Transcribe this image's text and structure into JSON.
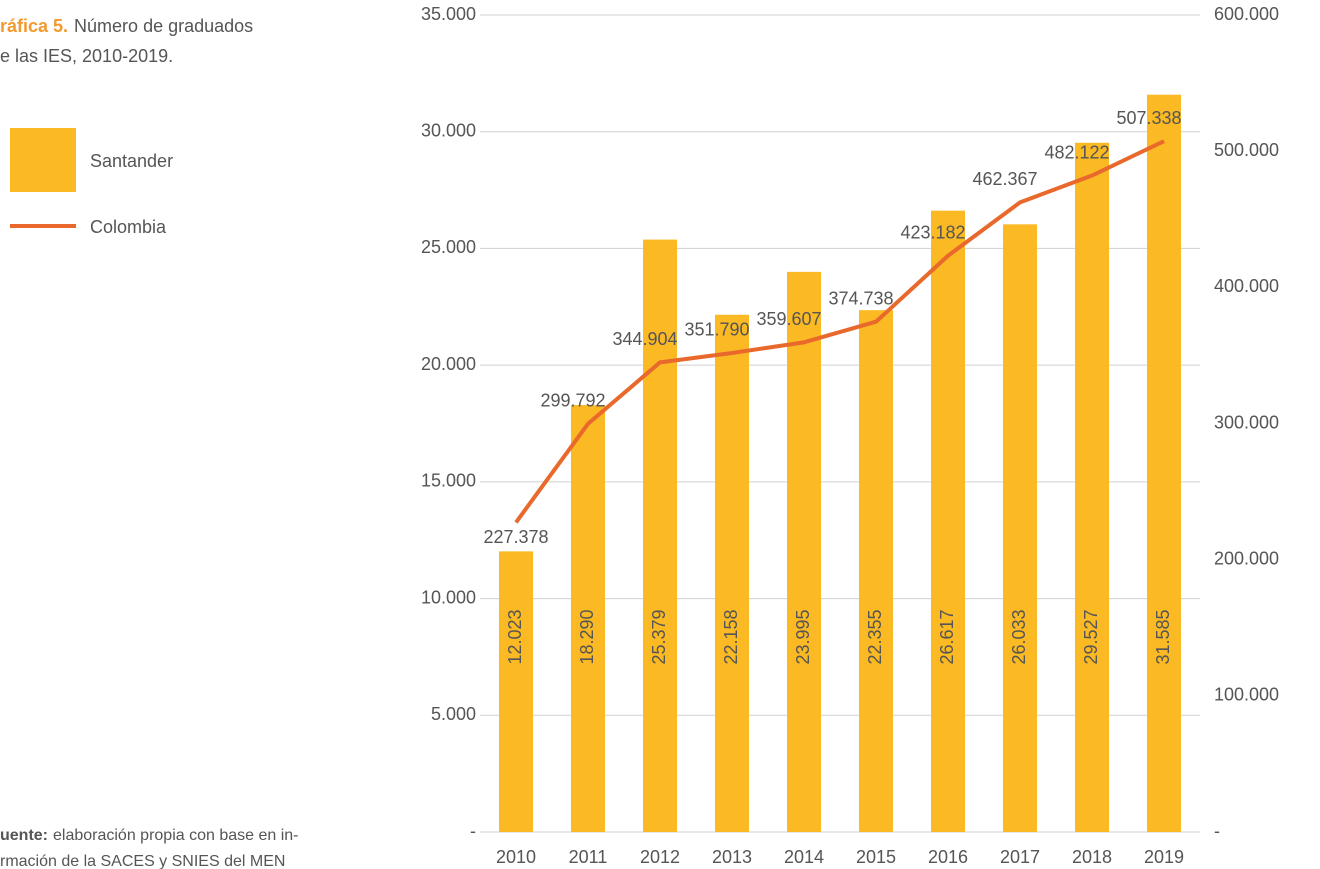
{
  "chart_data": {
    "type": "bar_line",
    "title_label": "ráfica 5.",
    "title": "Número de graduados",
    "subtitle": "e las IES, 2010-2019.",
    "source_label": "uente:",
    "source": "elaboración propia con base en in-",
    "source_line2": "rmación de la SACES y SNIES del MEN",
    "categories": [
      "2010",
      "2011",
      "2012",
      "2013",
      "2014",
      "2015",
      "2016",
      "2017",
      "2018",
      "2019"
    ],
    "series": [
      {
        "name": "Santander",
        "color": "#fbb923",
        "type": "bar",
        "values": [
          12023,
          18290,
          25379,
          22158,
          23995,
          22355,
          26617,
          26033,
          29527,
          31585
        ],
        "value_labels": [
          "12.023",
          "18.290",
          "25.379",
          "22.158",
          "23.995",
          "22.355",
          "26.617",
          "26.033",
          "29.527",
          "31.585"
        ]
      },
      {
        "name": "Colombia",
        "color": "#e8692b",
        "type": "line",
        "axis": "y2",
        "values": [
          227378,
          299792,
          344904,
          351790,
          359607,
          374738,
          423182,
          462367,
          482122,
          507338
        ],
        "value_labels": [
          "227.378",
          "299.792",
          "344.904",
          "351.790",
          "359.607",
          "374.738",
          "423.182",
          "462.367",
          "482.122",
          "507.338"
        ]
      }
    ],
    "ylim": [
      0,
      35000
    ],
    "yticks": [
      {
        "value": 0,
        "label": "-"
      },
      {
        "value": 5000,
        "label": "5.000"
      },
      {
        "value": 10000,
        "label": "10.000"
      },
      {
        "value": 15000,
        "label": "15.000"
      },
      {
        "value": 20000,
        "label": "20.000"
      },
      {
        "value": 25000,
        "label": "25.000"
      },
      {
        "value": 30000,
        "label": "30.000"
      },
      {
        "value": 35000,
        "label": "35.000"
      }
    ],
    "y2lim": [
      0,
      600000
    ],
    "y2ticks": [
      {
        "value": 0,
        "label": "-"
      },
      {
        "value": 100000,
        "label": "100.000"
      },
      {
        "value": 200000,
        "label": "200.000"
      },
      {
        "value": 300000,
        "label": "300.000"
      },
      {
        "value": 400000,
        "label": "400.000"
      },
      {
        "value": 500000,
        "label": "500.000"
      },
      {
        "value": 600000,
        "label": "600.000"
      }
    ],
    "grid": true
  }
}
